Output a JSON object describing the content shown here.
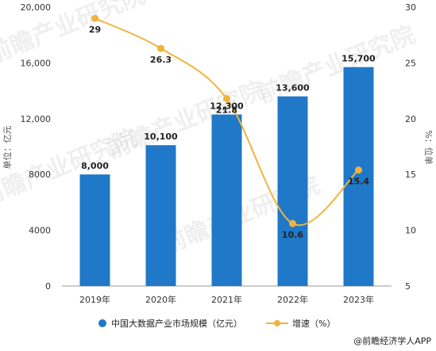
{
  "chart_data": {
    "type": "bar",
    "categories": [
      "2019年",
      "2020年",
      "2021年",
      "2022年",
      "2023年"
    ],
    "series": [
      {
        "name": "中国大数据产业市场规模（亿元）",
        "type": "bar",
        "axis": "left",
        "values": [
          8000,
          10100,
          12300,
          13600,
          15700
        ],
        "labels": [
          "8,000",
          "10,100",
          "12,300",
          "13,600",
          "15,700"
        ]
      },
      {
        "name": "增速（%）",
        "type": "line",
        "axis": "right",
        "values": [
          29,
          26.3,
          21.8,
          10.6,
          15.4
        ],
        "labels": [
          "29",
          "26.3",
          "21.8",
          "10.6",
          "15.4"
        ]
      }
    ],
    "ylabel": "单位：亿元",
    "y2label": "%：位单",
    "ylim": [
      0,
      20000
    ],
    "y2lim": [
      5,
      30
    ],
    "yticks": [
      "0",
      "4000",
      "8000",
      "12,000",
      "16,000",
      "20,000"
    ],
    "y2ticks": [
      "5",
      "10",
      "15",
      "20",
      "25",
      "30"
    ],
    "legend_position": "bottom",
    "grid": false
  },
  "colors": {
    "bar": "#1f78c8",
    "line": "#f0b43c",
    "axis": "#999999"
  },
  "watermark": "前瞻产业研究院",
  "source": "@前瞻经济学人APP"
}
